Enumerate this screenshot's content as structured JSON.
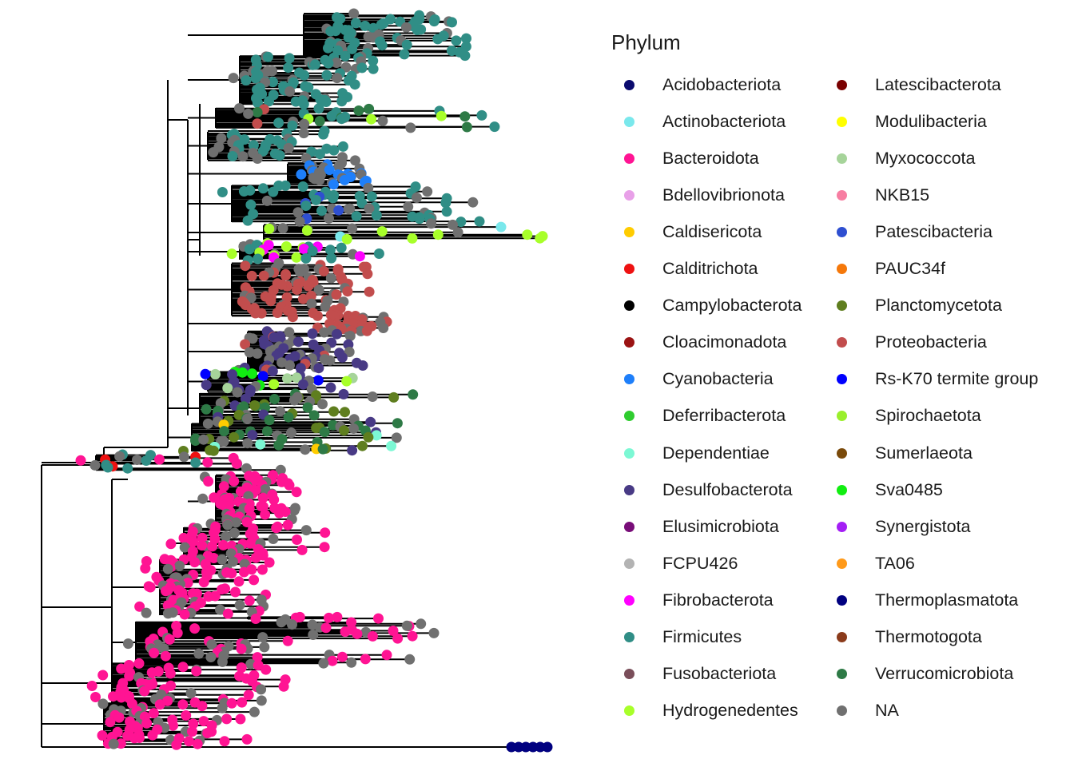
{
  "legend": {
    "title": "Phylum",
    "entries": [
      {
        "label": "Acidobacteriota",
        "color": "#0a0a6e"
      },
      {
        "label": "Actinobacteriota",
        "color": "#7ae8ec"
      },
      {
        "label": "Bacteroidota",
        "color": "#ff1493"
      },
      {
        "label": "Bdellovibrionota",
        "color": "#e8a0e8"
      },
      {
        "label": "Caldisericota",
        "color": "#ffcc00"
      },
      {
        "label": "Calditrichota",
        "color": "#ee1111"
      },
      {
        "label": "Campylobacterota",
        "color": "#000000"
      },
      {
        "label": "Cloacimonadota",
        "color": "#9b1313"
      },
      {
        "label": "Cyanobacteria",
        "color": "#1e7ffa"
      },
      {
        "label": "Deferribacterota",
        "color": "#2fcc2f"
      },
      {
        "label": "Dependentiae",
        "color": "#7cf8d4"
      },
      {
        "label": "Desulfobacterota",
        "color": "#483a85"
      },
      {
        "label": "Elusimicrobiota",
        "color": "#780d78"
      },
      {
        "label": "FCPU426",
        "color": "#b3b3b3"
      },
      {
        "label": "Fibrobacterota",
        "color": "#ff00ff"
      },
      {
        "label": "Firmicutes",
        "color": "#308e86"
      },
      {
        "label": "Fusobacteriota",
        "color": "#7a4e5a"
      },
      {
        "label": "Hydrogenedentes",
        "color": "#a8ff2a"
      },
      {
        "label": "Latescibacterota",
        "color": "#7a0000"
      },
      {
        "label": "Modulibacteria",
        "color": "#ffff00"
      },
      {
        "label": "Myxococcota",
        "color": "#a6d49a"
      },
      {
        "label": "NKB15",
        "color": "#f77ea2"
      },
      {
        "label": "Patescibacteria",
        "color": "#2e4fd1"
      },
      {
        "label": "PAUC34f",
        "color": "#f5780a"
      },
      {
        "label": "Planctomycetota",
        "color": "#5f7e1f"
      },
      {
        "label": "Proteobacteria",
        "color": "#c24d4d"
      },
      {
        "label": "Rs-K70 termite group",
        "color": "#0000ff"
      },
      {
        "label": "Spirochaetota",
        "color": "#9aef2c"
      },
      {
        "label": "Sumerlaeota",
        "color": "#7a4a0a"
      },
      {
        "label": "Sva0485",
        "color": "#11ee11"
      },
      {
        "label": "Synergistota",
        "color": "#a41ef5"
      },
      {
        "label": "TA06",
        "color": "#ff9a1a"
      },
      {
        "label": "Thermoplasmatota",
        "color": "#000080"
      },
      {
        "label": "Thermotogota",
        "color": "#8b3b1b"
      },
      {
        "label": "Verrucomicrobiota",
        "color": "#2e7a46"
      },
      {
        "label": "NA",
        "color": "#707070"
      }
    ]
  },
  "tree": {
    "type": "phylogenetic-tree",
    "layout": "rectangular",
    "branch_color": "#000000",
    "tip_shape": "filled-circle",
    "clades": [
      {
        "phylum": "Firmicutes",
        "abundance": "dominant",
        "region": "top"
      },
      {
        "phylum": "Proteobacteria",
        "abundance": "major",
        "region": "upper-middle"
      },
      {
        "phylum": "Desulfobacterota",
        "abundance": "moderate",
        "region": "middle"
      },
      {
        "phylum": "Verrucomicrobiota",
        "abundance": "moderate",
        "region": "middle"
      },
      {
        "phylum": "Planctomycetota",
        "abundance": "moderate",
        "region": "middle"
      },
      {
        "phylum": "Hydrogenedentes",
        "abundance": "moderate",
        "region": "top-middle"
      },
      {
        "phylum": "Cyanobacteria",
        "abundance": "minor",
        "region": "top-middle"
      },
      {
        "phylum": "Bacteroidota",
        "abundance": "dominant",
        "region": "bottom"
      },
      {
        "phylum": "Thermoplasmatota",
        "abundance": "minor",
        "region": "outgroup"
      },
      {
        "phylum": "NA",
        "abundance": "scattered",
        "region": "throughout"
      }
    ]
  }
}
